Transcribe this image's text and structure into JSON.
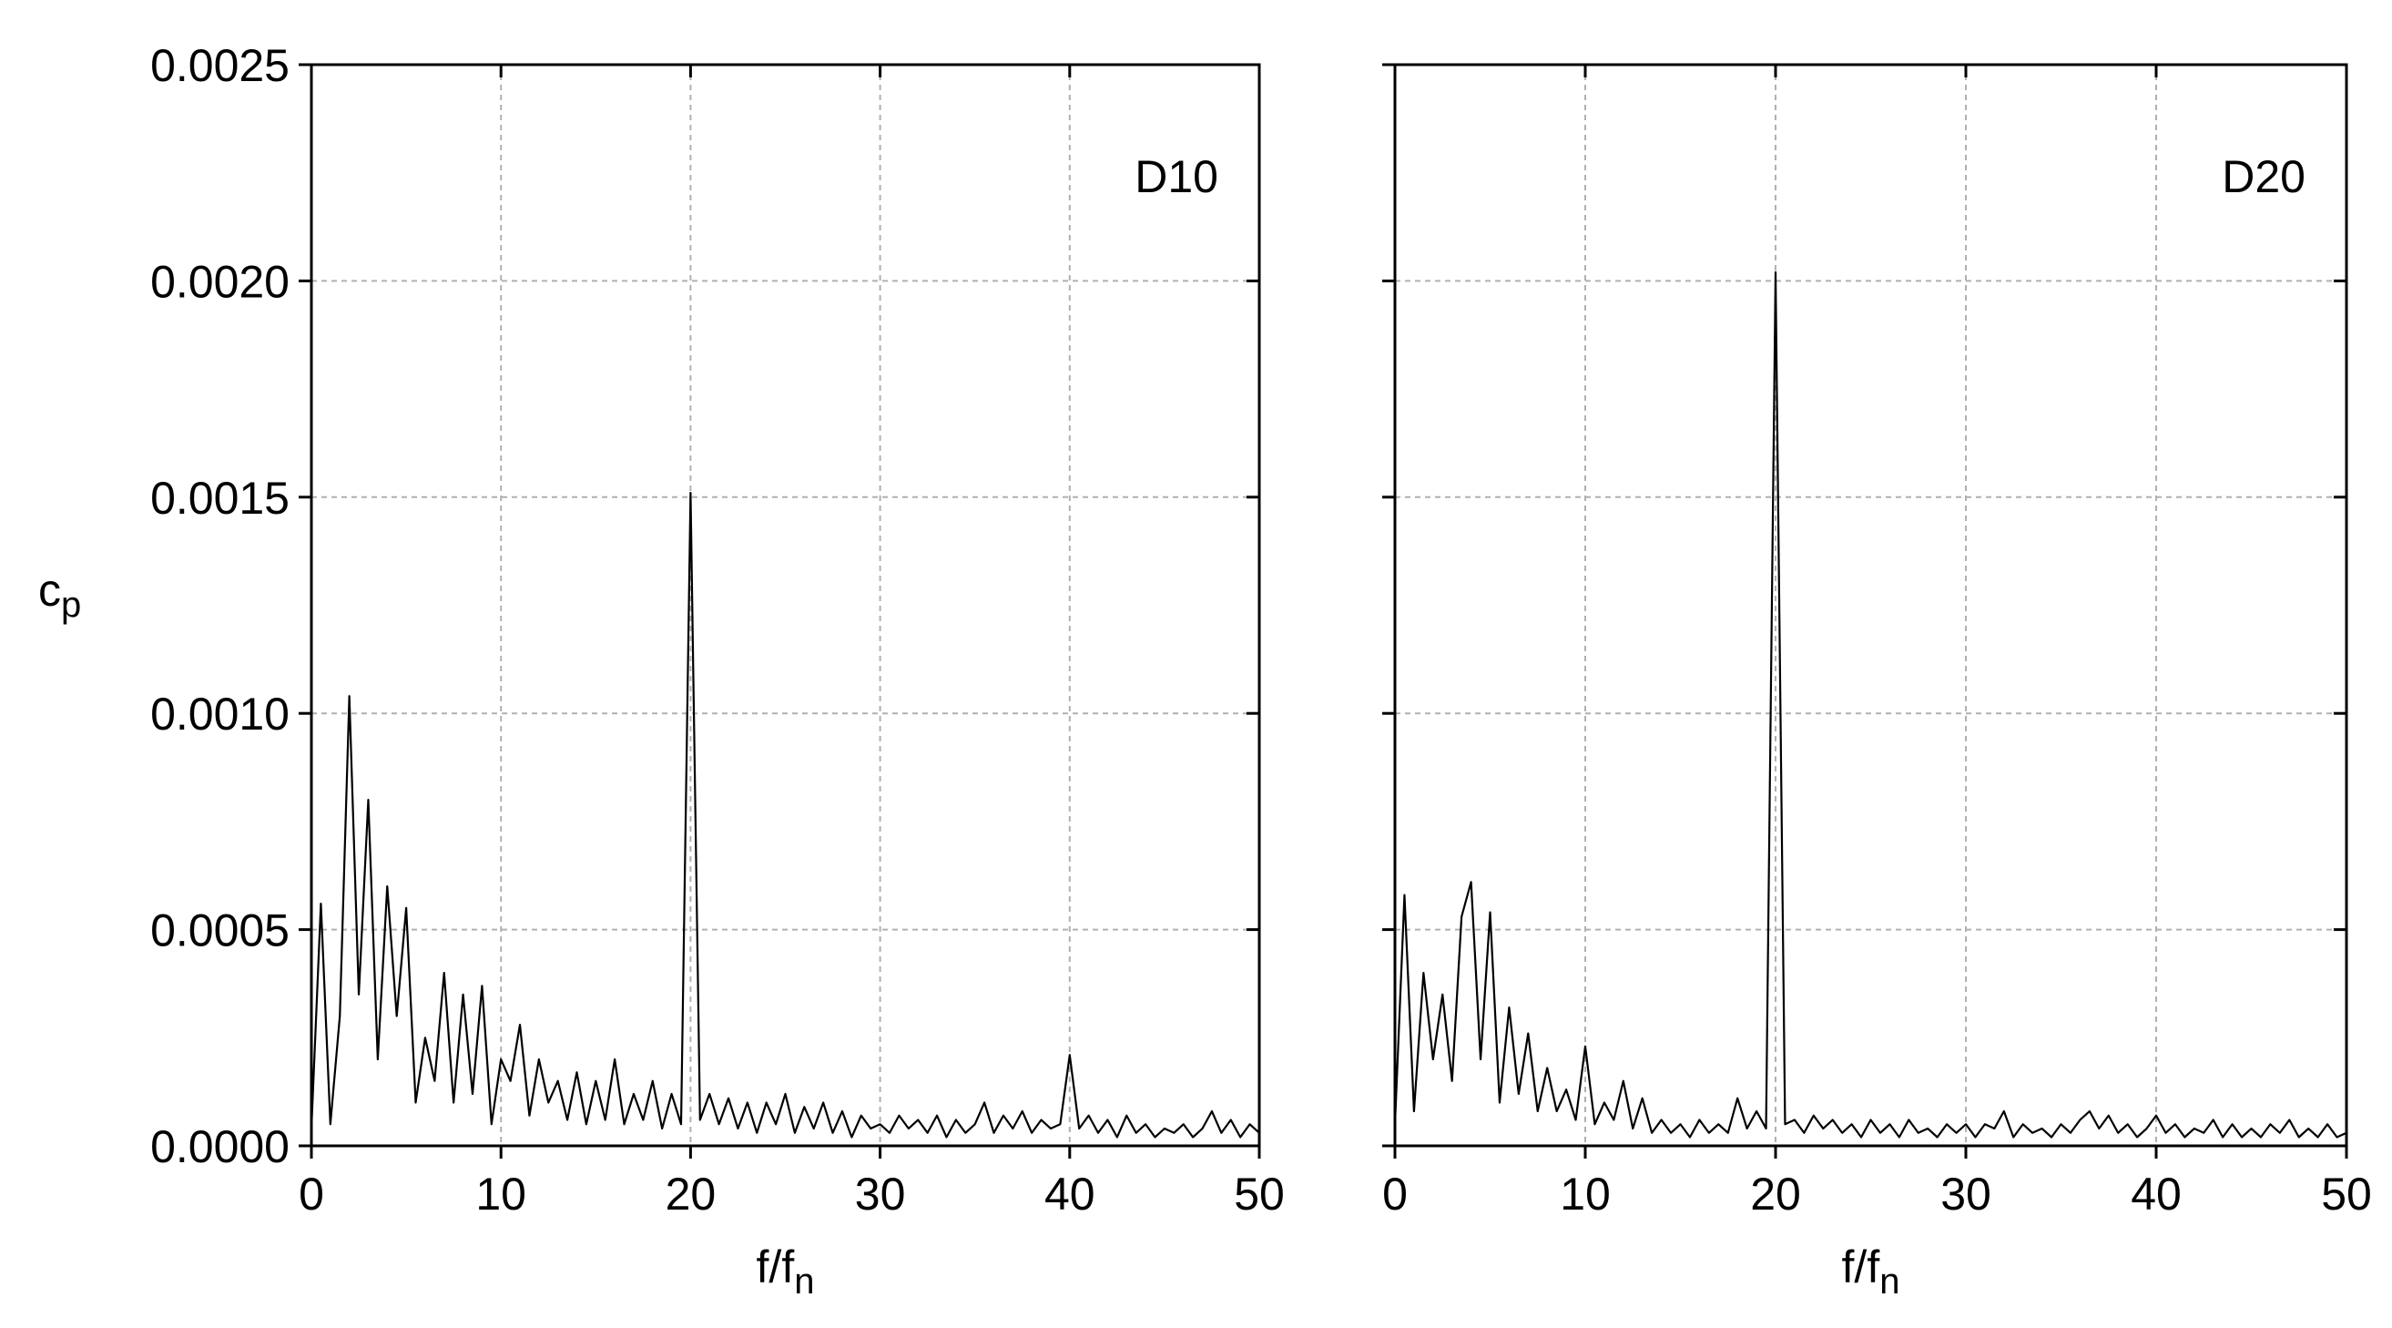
{
  "chart_data": [
    {
      "type": "line",
      "annotation": "D10",
      "ylabel": {
        "main": "c",
        "sub": "p"
      },
      "xlabel": {
        "main": "f/f",
        "sub": "n"
      },
      "color": "#000000",
      "grid": true,
      "show_ytick_labels": true,
      "xlim": [
        0,
        50
      ],
      "xticks": [
        0,
        10,
        20,
        30,
        40,
        50
      ],
      "ylim": [
        0,
        0.0025
      ],
      "yticks": [
        {
          "value": 0,
          "label": "0.0000"
        },
        0.0005,
        {
          "value": 0.001,
          "label": "0.0010"
        },
        0.0015,
        {
          "value": 0.002,
          "label": "0.0020"
        },
        0.0025
      ],
      "x": [
        0,
        0.5,
        1,
        1.5,
        2,
        2.5,
        3,
        3.5,
        4,
        4.5,
        5,
        5.5,
        6,
        6.5,
        7,
        7.5,
        8,
        8.5,
        9,
        9.5,
        10,
        10.5,
        11,
        11.5,
        12,
        12.5,
        13,
        13.5,
        14,
        14.5,
        15,
        15.5,
        16,
        16.5,
        17,
        17.5,
        18,
        18.5,
        19,
        19.5,
        20,
        20.5,
        21,
        21.5,
        22,
        22.5,
        23,
        23.5,
        24,
        24.5,
        25,
        25.5,
        26,
        26.5,
        27,
        27.5,
        28,
        28.5,
        29,
        29.5,
        30,
        30.5,
        31,
        31.5,
        32,
        32.5,
        33,
        33.5,
        34,
        34.5,
        35,
        35.5,
        36,
        36.5,
        37,
        37.5,
        38,
        38.5,
        39,
        39.5,
        40,
        40.5,
        41,
        41.5,
        42,
        42.5,
        43,
        43.5,
        44,
        44.5,
        45,
        45.5,
        46,
        46.5,
        47,
        47.5,
        48,
        48.5,
        49,
        49.5,
        50
      ],
      "values": [
        4e-05,
        0.00056,
        5e-05,
        0.0003,
        0.00104,
        0.00035,
        0.0008,
        0.0002,
        0.0006,
        0.0003,
        0.00055,
        0.0001,
        0.00025,
        0.00015,
        0.0004,
        0.0001,
        0.00035,
        0.00012,
        0.00037,
        5e-05,
        0.0002,
        0.00015,
        0.00028,
        7e-05,
        0.0002,
        0.0001,
        0.00015,
        6e-05,
        0.00017,
        5e-05,
        0.00015,
        6e-05,
        0.0002,
        5e-05,
        0.00012,
        6e-05,
        0.00015,
        4e-05,
        0.00012,
        5e-05,
        0.00151,
        6e-05,
        0.00012,
        5e-05,
        0.00011,
        4e-05,
        0.0001,
        3e-05,
        0.0001,
        5e-05,
        0.00012,
        3e-05,
        9e-05,
        4e-05,
        0.0001,
        3e-05,
        8e-05,
        2e-05,
        7e-05,
        4e-05,
        5e-05,
        3e-05,
        7e-05,
        4e-05,
        6e-05,
        3e-05,
        7e-05,
        2e-05,
        6e-05,
        3e-05,
        5e-05,
        0.0001,
        3e-05,
        7e-05,
        4e-05,
        8e-05,
        3e-05,
        6e-05,
        4e-05,
        5e-05,
        0.00021,
        4e-05,
        7e-05,
        3e-05,
        6e-05,
        2e-05,
        7e-05,
        3e-05,
        5e-05,
        2e-05,
        4e-05,
        3e-05,
        5e-05,
        2e-05,
        4e-05,
        8e-05,
        3e-05,
        6e-05,
        2e-05,
        5e-05,
        3e-05
      ]
    },
    {
      "type": "line",
      "annotation": "D20",
      "xlabel": {
        "main": "f/f",
        "sub": "n"
      },
      "color": "#000000",
      "grid": true,
      "show_ytick_labels": false,
      "xlim": [
        0,
        50
      ],
      "xticks": [
        0,
        10,
        20,
        30,
        40,
        50
      ],
      "ylim": [
        0,
        0.0025
      ],
      "yticks": [
        0,
        0.0005,
        0.001,
        0.0015,
        0.002,
        0.0025
      ],
      "x": [
        0,
        0.5,
        1,
        1.5,
        2,
        2.5,
        3,
        3.5,
        4,
        4.5,
        5,
        5.5,
        6,
        6.5,
        7,
        7.5,
        8,
        8.5,
        9,
        9.5,
        10,
        10.5,
        11,
        11.5,
        12,
        12.5,
        13,
        13.5,
        14,
        14.5,
        15,
        15.5,
        16,
        16.5,
        17,
        17.5,
        18,
        18.5,
        19,
        19.5,
        20,
        20.5,
        21,
        21.5,
        22,
        22.5,
        23,
        23.5,
        24,
        24.5,
        25,
        25.5,
        26,
        26.5,
        27,
        27.5,
        28,
        28.5,
        29,
        29.5,
        30,
        30.5,
        31,
        31.5,
        32,
        32.5,
        33,
        33.5,
        34,
        34.5,
        35,
        35.5,
        36,
        36.5,
        37,
        37.5,
        38,
        38.5,
        39,
        39.5,
        40,
        40.5,
        41,
        41.5,
        42,
        42.5,
        43,
        43.5,
        44,
        44.5,
        45,
        45.5,
        46,
        46.5,
        47,
        47.5,
        48,
        48.5,
        49,
        49.5,
        50
      ],
      "values": [
        5e-05,
        0.00058,
        8e-05,
        0.0004,
        0.0002,
        0.00035,
        0.00015,
        0.00053,
        0.00061,
        0.0002,
        0.00054,
        0.0001,
        0.00032,
        0.00012,
        0.00026,
        8e-05,
        0.00018,
        8e-05,
        0.00013,
        6e-05,
        0.00023,
        5e-05,
        0.0001,
        6e-05,
        0.00015,
        4e-05,
        0.00011,
        3e-05,
        6e-05,
        3e-05,
        5e-05,
        2e-05,
        6e-05,
        3e-05,
        5e-05,
        3e-05,
        0.00011,
        4e-05,
        8e-05,
        4e-05,
        0.00202,
        5e-05,
        6e-05,
        3e-05,
        7e-05,
        4e-05,
        6e-05,
        3e-05,
        5e-05,
        2e-05,
        6e-05,
        3e-05,
        5e-05,
        2e-05,
        6e-05,
        3e-05,
        4e-05,
        2e-05,
        5e-05,
        3e-05,
        5e-05,
        2e-05,
        5e-05,
        4e-05,
        8e-05,
        2e-05,
        5e-05,
        3e-05,
        4e-05,
        2e-05,
        5e-05,
        3e-05,
        6e-05,
        8e-05,
        4e-05,
        7e-05,
        3e-05,
        5e-05,
        2e-05,
        4e-05,
        7e-05,
        3e-05,
        5e-05,
        2e-05,
        4e-05,
        3e-05,
        6e-05,
        2e-05,
        5e-05,
        2e-05,
        4e-05,
        2e-05,
        5e-05,
        3e-05,
        6e-05,
        2e-05,
        4e-05,
        2e-05,
        5e-05,
        2e-05,
        3e-05
      ]
    }
  ]
}
